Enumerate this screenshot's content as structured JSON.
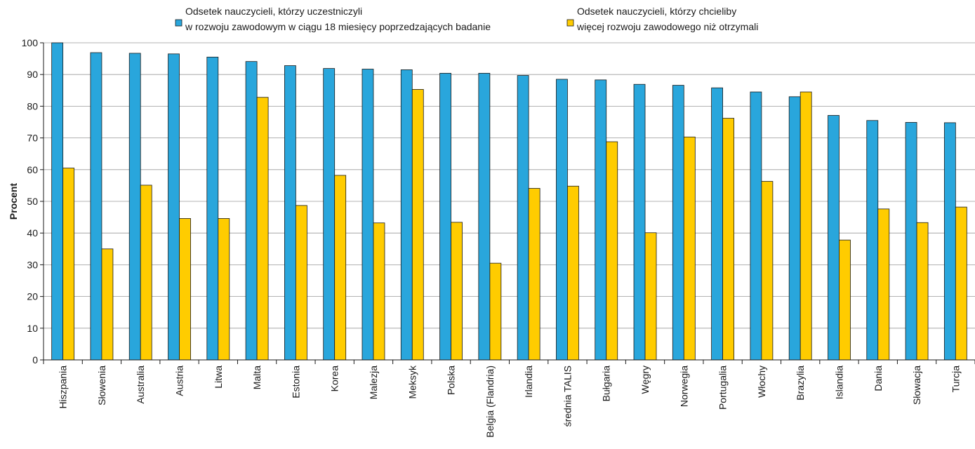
{
  "chart_data": {
    "type": "bar",
    "title": "",
    "xlabel": "",
    "ylabel": "Procent",
    "ylim": [
      0,
      100
    ],
    "yticks": [
      0,
      10,
      20,
      30,
      40,
      50,
      60,
      70,
      80,
      90,
      100
    ],
    "grid": true,
    "legend_position": "top",
    "categories": [
      "Hiszpania",
      "Słowenia",
      "Australia",
      "Austria",
      "Litwa",
      "Malta",
      "Estonia",
      "Korea",
      "Malezja",
      "Meksyk",
      "Polska",
      "Belgia (Flandria)",
      "Irlandia",
      "średnia TALIS",
      "Bułgaria",
      "Węgry",
      "Norwegia",
      "Portugalia",
      "Włochy",
      "Brazylia",
      "Islandia",
      "Dania",
      "Słowacja",
      "Turcja"
    ],
    "series": [
      {
        "legend_lines": [
          "Odsetek nauczycieli, którzy uczestniczyli",
          "w rozwoju zawodowym w ciągu 18 miesięcy poprzedzających badanie"
        ],
        "color": "#29a6dc",
        "values": [
          100,
          96.9,
          96.7,
          96.5,
          95.5,
          94.1,
          92.8,
          91.9,
          91.7,
          91.5,
          90.4,
          90.4,
          89.7,
          88.5,
          88.3,
          86.9,
          86.6,
          85.8,
          84.5,
          83.0,
          77.1,
          75.5,
          74.9,
          74.8
        ]
      },
      {
        "legend_lines": [
          "Odsetek nauczycieli, którzy chcieliby",
          "więcej rozwoju zawodowego niż otrzymali"
        ],
        "color": "#ffcc00",
        "values": [
          60.5,
          35.0,
          55.1,
          44.6,
          44.6,
          82.8,
          48.7,
          58.2,
          43.2,
          85.3,
          43.4,
          30.5,
          54.1,
          54.8,
          68.8,
          40.1,
          70.3,
          76.2,
          56.3,
          84.5,
          37.8,
          47.6,
          43.3,
          48.2
        ]
      }
    ]
  }
}
